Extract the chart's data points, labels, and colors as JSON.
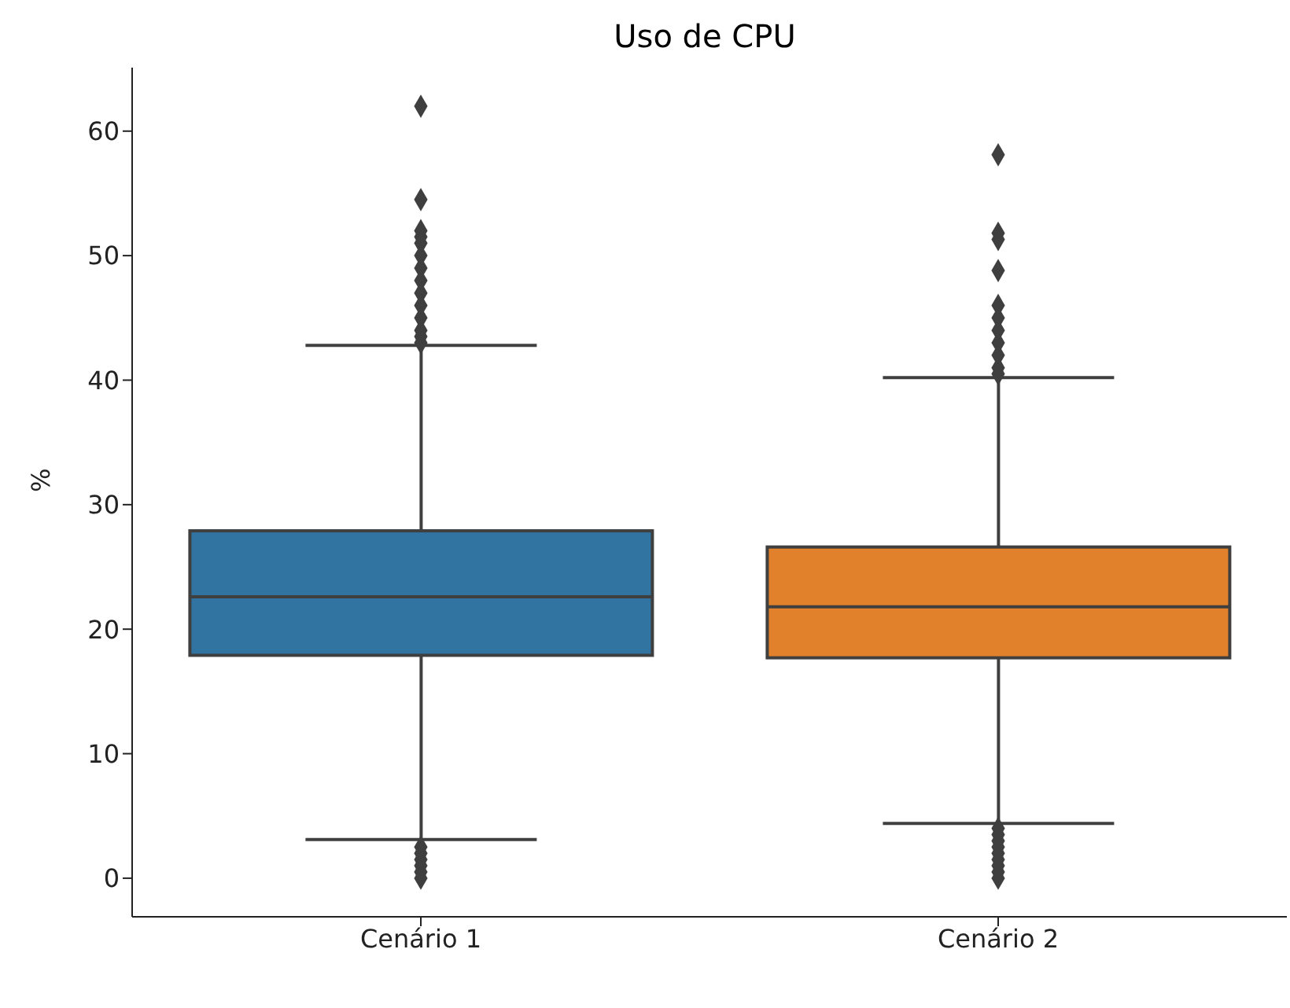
{
  "chart_data": {
    "type": "box",
    "title": "Uso de CPU",
    "ylabel": "%",
    "categories": [
      "Cenário 1",
      "Cenário 2"
    ],
    "colors": [
      "#3274a1",
      "#e1812c"
    ],
    "boxes": [
      {
        "low": 3.1,
        "q1": 17.9,
        "median": 22.6,
        "q3": 27.9,
        "high": 42.8,
        "outliers": [
          62,
          54.5,
          52,
          51.5,
          51,
          50,
          49,
          48,
          47,
          46,
          45,
          44,
          43.5,
          43,
          2.5,
          2,
          1.5,
          1,
          0.5,
          0
        ]
      },
      {
        "low": 4.4,
        "q1": 17.7,
        "median": 21.8,
        "q3": 26.6,
        "high": 40.2,
        "outliers": [
          58.1,
          51.8,
          51.3,
          48.8,
          46,
          45,
          44,
          43,
          42,
          41,
          40.5,
          4,
          3.5,
          3,
          2.5,
          2,
          1.5,
          1,
          0.5,
          0
        ]
      }
    ],
    "ylim": [
      -3.1,
      65.1
    ],
    "yticks": [
      0,
      10,
      20,
      30,
      40,
      50,
      60
    ],
    "grid": false,
    "legend": false,
    "marker": "diamond"
  }
}
